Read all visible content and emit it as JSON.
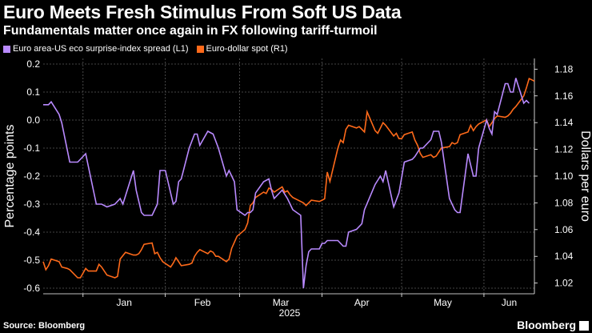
{
  "title": "Euro Meets Fresh Stimulus From Soft US Data",
  "subtitle": "Fundamentals matter once again in FX following tariff-turmoil",
  "source": "Source: Bloomberg",
  "brand": "Bloomberg",
  "colors": {
    "background": "#000000",
    "surprise": "#b98aff",
    "eurusd": "#ff6a1a",
    "grid": "#5a5a5a",
    "text": "#ffffff"
  },
  "chart_data": {
    "type": "line",
    "xlabel": "2025",
    "x_ticks": [
      "Jan",
      "Feb",
      "Mar",
      "Apr",
      "May",
      "Jun"
    ],
    "x_range": [
      "2024-12-17",
      "2025-06-20"
    ],
    "grid": true,
    "legend_position": "top-left",
    "left_axis": {
      "label": "Percentage points",
      "ticks": [
        "0.2",
        "0.1",
        "0.0",
        "-0.1",
        "-0.2",
        "-0.3",
        "-0.4",
        "-0.5",
        "-0.6"
      ],
      "range": [
        -0.62,
        0.22
      ]
    },
    "right_axis": {
      "label": "Dollars per euro",
      "ticks": [
        "1.18",
        "1.16",
        "1.14",
        "1.12",
        "1.10",
        "1.08",
        "1.06",
        "1.04",
        "1.02"
      ],
      "range": [
        1.012,
        1.188
      ]
    },
    "series": [
      {
        "name": "Euro area-US eco surprise-index spread (L1)",
        "axis": "left",
        "points": [
          [
            "2024-12-17",
            0.055
          ],
          [
            "2024-12-19",
            0.055
          ],
          [
            "2024-12-20",
            0.065
          ],
          [
            "2024-12-23",
            0.02
          ],
          [
            "2024-12-24",
            -0.01
          ],
          [
            "2024-12-27",
            -0.15
          ],
          [
            "2024-12-30",
            -0.15
          ],
          [
            "2024-12-31",
            -0.14
          ],
          [
            "2025-01-02",
            -0.12
          ],
          [
            "2025-01-06",
            -0.3
          ],
          [
            "2025-01-08",
            -0.3
          ],
          [
            "2025-01-10",
            -0.31
          ],
          [
            "2025-01-13",
            -0.3
          ],
          [
            "2025-01-15",
            -0.28
          ],
          [
            "2025-01-16",
            -0.3
          ],
          [
            "2025-01-20",
            -0.18
          ],
          [
            "2025-01-21",
            -0.25
          ],
          [
            "2025-01-23",
            -0.33
          ],
          [
            "2025-01-24",
            -0.34
          ],
          [
            "2025-01-27",
            -0.34
          ],
          [
            "2025-01-29",
            -0.3
          ],
          [
            "2025-01-30",
            -0.18
          ],
          [
            "2025-02-01",
            -0.18
          ],
          [
            "2025-02-04",
            -0.3
          ],
          [
            "2025-02-05",
            -0.29
          ],
          [
            "2025-02-06",
            -0.22
          ],
          [
            "2025-02-07",
            -0.21
          ],
          [
            "2025-02-10",
            -0.1
          ],
          [
            "2025-02-12",
            -0.05
          ],
          [
            "2025-02-13",
            -0.05
          ],
          [
            "2025-02-14",
            -0.09
          ],
          [
            "2025-02-17",
            -0.04
          ],
          [
            "2025-02-19",
            -0.05
          ],
          [
            "2025-02-21",
            -0.1
          ],
          [
            "2025-02-24",
            -0.2
          ],
          [
            "2025-02-25",
            -0.18
          ],
          [
            "2025-02-27",
            -0.22
          ],
          [
            "2025-02-28",
            -0.32
          ],
          [
            "2025-03-03",
            -0.34
          ],
          [
            "2025-03-04",
            -0.33
          ],
          [
            "2025-03-05",
            -0.33
          ],
          [
            "2025-03-06",
            -0.32
          ],
          [
            "2025-03-07",
            -0.26
          ],
          [
            "2025-03-10",
            -0.22
          ],
          [
            "2025-03-12",
            -0.21
          ],
          [
            "2025-03-13",
            -0.25
          ],
          [
            "2025-03-14",
            -0.28
          ],
          [
            "2025-03-17",
            -0.25
          ],
          [
            "2025-03-19",
            -0.28
          ],
          [
            "2025-03-21",
            -0.32
          ],
          [
            "2025-03-24",
            -0.34
          ],
          [
            "2025-03-25",
            -0.6
          ],
          [
            "2025-03-26",
            -0.52
          ],
          [
            "2025-03-27",
            -0.47
          ],
          [
            "2025-03-28",
            -0.46
          ],
          [
            "2025-03-31",
            -0.46
          ],
          [
            "2025-04-01",
            -0.44
          ],
          [
            "2025-04-02",
            -0.44
          ],
          [
            "2025-04-03",
            -0.43
          ],
          [
            "2025-04-07",
            -0.43
          ],
          [
            "2025-04-09",
            -0.45
          ],
          [
            "2025-04-10",
            -0.45
          ],
          [
            "2025-04-11",
            -0.4
          ],
          [
            "2025-04-14",
            -0.39
          ],
          [
            "2025-04-16",
            -0.37
          ],
          [
            "2025-04-17",
            -0.32
          ],
          [
            "2025-04-21",
            -0.23
          ],
          [
            "2025-04-23",
            -0.2
          ],
          [
            "2025-04-24",
            -0.22
          ],
          [
            "2025-04-25",
            -0.18
          ],
          [
            "2025-04-28",
            -0.31
          ],
          [
            "2025-04-30",
            -0.26
          ],
          [
            "2025-05-02",
            -0.15
          ],
          [
            "2025-05-05",
            -0.14
          ],
          [
            "2025-05-06",
            -0.13
          ],
          [
            "2025-05-08",
            -0.1
          ],
          [
            "2025-05-09",
            -0.1
          ],
          [
            "2025-05-12",
            -0.07
          ],
          [
            "2025-05-13",
            -0.04
          ],
          [
            "2025-05-15",
            -0.04
          ],
          [
            "2025-05-16",
            -0.08
          ],
          [
            "2025-05-19",
            -0.28
          ],
          [
            "2025-05-21",
            -0.32
          ],
          [
            "2025-05-22",
            -0.33
          ],
          [
            "2025-05-23",
            -0.33
          ],
          [
            "2025-05-26",
            -0.12
          ],
          [
            "2025-05-27",
            -0.16
          ],
          [
            "2025-05-28",
            -0.2
          ],
          [
            "2025-05-29",
            -0.2
          ],
          [
            "2025-05-30",
            -0.1
          ],
          [
            "2025-06-02",
            0.0
          ],
          [
            "2025-06-03",
            -0.03
          ],
          [
            "2025-06-04",
            -0.05
          ],
          [
            "2025-06-05",
            0.03
          ],
          [
            "2025-06-06",
            0.02
          ],
          [
            "2025-06-09",
            0.13
          ],
          [
            "2025-06-10",
            0.13
          ],
          [
            "2025-06-11",
            0.1
          ],
          [
            "2025-06-12",
            0.1
          ],
          [
            "2025-06-13",
            0.15
          ],
          [
            "2025-06-16",
            0.06
          ],
          [
            "2025-06-17",
            0.07
          ],
          [
            "2025-06-18",
            0.06
          ]
        ]
      },
      {
        "name": "Euro-dollar spot (R1)",
        "axis": "right",
        "points": [
          [
            "2024-12-17",
            1.036
          ],
          [
            "2024-12-18",
            1.03
          ],
          [
            "2024-12-19",
            1.033
          ],
          [
            "2024-12-20",
            1.038
          ],
          [
            "2024-12-23",
            1.036
          ],
          [
            "2024-12-24",
            1.032
          ],
          [
            "2024-12-26",
            1.031
          ],
          [
            "2024-12-27",
            1.03
          ],
          [
            "2024-12-30",
            1.024
          ],
          [
            "2024-12-31",
            1.024
          ],
          [
            "2025-01-02",
            1.031
          ],
          [
            "2025-01-03",
            1.029
          ],
          [
            "2025-01-06",
            1.029
          ],
          [
            "2025-01-07",
            1.034
          ],
          [
            "2025-01-08",
            1.032
          ],
          [
            "2025-01-10",
            1.026
          ],
          [
            "2025-01-13",
            1.024
          ],
          [
            "2025-01-14",
            1.025
          ],
          [
            "2025-01-15",
            1.038
          ],
          [
            "2025-01-17",
            1.043
          ],
          [
            "2025-01-20",
            1.041
          ],
          [
            "2025-01-21",
            1.041
          ],
          [
            "2025-01-22",
            1.042
          ],
          [
            "2025-01-23",
            1.045
          ],
          [
            "2025-01-24",
            1.049
          ],
          [
            "2025-01-27",
            1.05
          ],
          [
            "2025-01-28",
            1.042
          ],
          [
            "2025-01-29",
            1.043
          ],
          [
            "2025-01-30",
            1.039
          ],
          [
            "2025-01-31",
            1.036
          ],
          [
            "2025-02-03",
            1.032
          ],
          [
            "2025-02-04",
            1.035
          ],
          [
            "2025-02-05",
            1.039
          ],
          [
            "2025-02-06",
            1.036
          ],
          [
            "2025-02-07",
            1.033
          ],
          [
            "2025-02-10",
            1.034
          ],
          [
            "2025-02-11",
            1.035
          ],
          [
            "2025-02-12",
            1.04
          ],
          [
            "2025-02-13",
            1.043
          ],
          [
            "2025-02-14",
            1.045
          ],
          [
            "2025-02-17",
            1.042
          ],
          [
            "2025-02-18",
            1.044
          ],
          [
            "2025-02-19",
            1.043
          ],
          [
            "2025-02-20",
            1.04
          ],
          [
            "2025-02-21",
            1.04
          ],
          [
            "2025-02-24",
            1.036
          ],
          [
            "2025-02-25",
            1.038
          ],
          [
            "2025-02-26",
            1.046
          ],
          [
            "2025-02-28",
            1.055
          ],
          [
            "2025-03-03",
            1.06
          ],
          [
            "2025-03-04",
            1.065
          ],
          [
            "2025-03-05",
            1.078
          ],
          [
            "2025-03-06",
            1.08
          ],
          [
            "2025-03-07",
            1.084
          ],
          [
            "2025-03-10",
            1.088
          ],
          [
            "2025-03-11",
            1.087
          ],
          [
            "2025-03-12",
            1.091
          ],
          [
            "2025-03-13",
            1.09
          ],
          [
            "2025-03-14",
            1.088
          ],
          [
            "2025-03-17",
            1.092
          ],
          [
            "2025-03-18",
            1.088
          ],
          [
            "2025-03-19",
            1.089
          ],
          [
            "2025-03-20",
            1.086
          ],
          [
            "2025-03-21",
            1.084
          ],
          [
            "2025-03-24",
            1.081
          ],
          [
            "2025-03-25",
            1.08
          ],
          [
            "2025-03-26",
            1.078
          ],
          [
            "2025-03-27",
            1.08
          ],
          [
            "2025-03-28",
            1.082
          ],
          [
            "2025-03-31",
            1.081
          ],
          [
            "2025-04-01",
            1.082
          ],
          [
            "2025-04-02",
            1.083
          ],
          [
            "2025-04-03",
            1.103
          ],
          [
            "2025-04-04",
            1.096
          ],
          [
            "2025-04-07",
            1.121
          ],
          [
            "2025-04-08",
            1.127
          ],
          [
            "2025-04-09",
            1.125
          ],
          [
            "2025-04-10",
            1.135
          ],
          [
            "2025-04-11",
            1.138
          ],
          [
            "2025-04-14",
            1.136
          ],
          [
            "2025-04-15",
            1.137
          ],
          [
            "2025-04-16",
            1.135
          ],
          [
            "2025-04-17",
            1.133
          ],
          [
            "2025-04-18",
            1.148
          ],
          [
            "2025-04-21",
            1.134
          ],
          [
            "2025-04-22",
            1.132
          ],
          [
            "2025-04-23",
            1.136
          ],
          [
            "2025-04-24",
            1.14
          ],
          [
            "2025-04-25",
            1.138
          ],
          [
            "2025-04-28",
            1.13
          ],
          [
            "2025-04-29",
            1.132
          ],
          [
            "2025-04-30",
            1.128
          ],
          [
            "2025-05-01",
            1.128
          ],
          [
            "2025-05-02",
            1.131
          ],
          [
            "2025-05-05",
            1.133
          ],
          [
            "2025-05-06",
            1.127
          ],
          [
            "2025-05-07",
            1.123
          ],
          [
            "2025-05-08",
            1.117
          ],
          [
            "2025-05-09",
            1.114
          ],
          [
            "2025-05-12",
            1.116
          ],
          [
            "2025-05-13",
            1.114
          ],
          [
            "2025-05-14",
            1.115
          ],
          [
            "2025-05-15",
            1.118
          ],
          [
            "2025-05-16",
            1.121
          ],
          [
            "2025-05-19",
            1.122
          ],
          [
            "2025-05-20",
            1.125
          ],
          [
            "2025-05-21",
            1.124
          ],
          [
            "2025-05-22",
            1.125
          ],
          [
            "2025-05-23",
            1.131
          ],
          [
            "2025-05-26",
            1.133
          ],
          [
            "2025-05-27",
            1.138
          ],
          [
            "2025-05-28",
            1.134
          ],
          [
            "2025-05-29",
            1.137
          ],
          [
            "2025-05-30",
            1.139
          ],
          [
            "2025-06-02",
            1.142
          ],
          [
            "2025-06-03",
            1.137
          ],
          [
            "2025-06-04",
            1.14
          ],
          [
            "2025-06-05",
            1.143
          ],
          [
            "2025-06-06",
            1.145
          ],
          [
            "2025-06-09",
            1.144
          ],
          [
            "2025-06-10",
            1.145
          ],
          [
            "2025-06-11",
            1.147
          ],
          [
            "2025-06-12",
            1.15
          ],
          [
            "2025-06-13",
            1.152
          ],
          [
            "2025-06-16",
            1.16
          ],
          [
            "2025-06-17",
            1.166
          ],
          [
            "2025-06-18",
            1.173
          ],
          [
            "2025-06-19",
            1.172
          ],
          [
            "2025-06-20",
            1.171
          ]
        ]
      }
    ]
  }
}
